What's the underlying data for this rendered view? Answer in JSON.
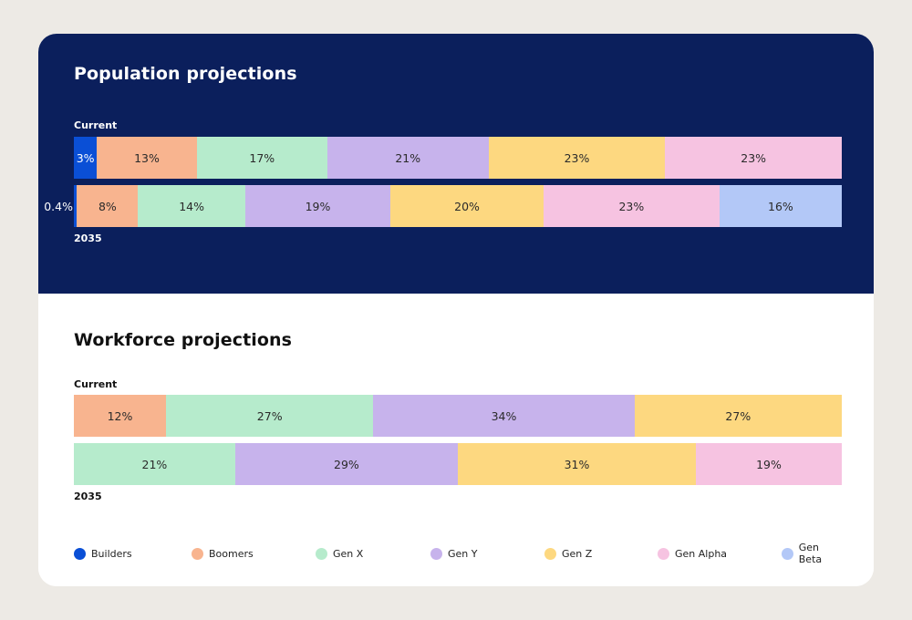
{
  "chart_data": [
    {
      "type": "bar",
      "orientation": "horizontal-stacked-percent",
      "title": "Population projections",
      "categories": [
        "Current",
        "2035"
      ],
      "series": [
        {
          "name": "Builders",
          "values": [
            3,
            0.4
          ]
        },
        {
          "name": "Boomers",
          "values": [
            13,
            8
          ]
        },
        {
          "name": "Gen X",
          "values": [
            17,
            14
          ]
        },
        {
          "name": "Gen Y",
          "values": [
            21,
            19
          ]
        },
        {
          "name": "Gen Z",
          "values": [
            23,
            20
          ]
        },
        {
          "name": "Gen Alpha",
          "values": [
            23,
            23
          ]
        },
        {
          "name": "Gen Beta",
          "values": [
            0,
            16
          ]
        }
      ],
      "labels": [
        [
          "3%",
          "13%",
          "17%",
          "21%",
          "23%",
          "23%",
          ""
        ],
        [
          "0.4%",
          "8%",
          "14%",
          "19%",
          "20%",
          "23%",
          "16%"
        ]
      ]
    },
    {
      "type": "bar",
      "orientation": "horizontal-stacked-percent",
      "title": "Workforce projections",
      "categories": [
        "Current",
        "2035"
      ],
      "series": [
        {
          "name": "Builders",
          "values": [
            0,
            0
          ]
        },
        {
          "name": "Boomers",
          "values": [
            12,
            0
          ]
        },
        {
          "name": "Gen X",
          "values": [
            27,
            21
          ]
        },
        {
          "name": "Gen Y",
          "values": [
            34,
            29
          ]
        },
        {
          "name": "Gen Z",
          "values": [
            27,
            31
          ]
        },
        {
          "name": "Gen Alpha",
          "values": [
            0,
            19
          ]
        },
        {
          "name": "Gen Beta",
          "values": [
            0,
            0
          ]
        }
      ],
      "labels": [
        [
          "",
          "12%",
          "27%",
          "34%",
          "27%",
          "",
          ""
        ],
        [
          "",
          "",
          "21%",
          "29%",
          "31%",
          "19%",
          ""
        ]
      ]
    }
  ],
  "legend": [
    {
      "name": "Builders",
      "color": "#0a4fd6"
    },
    {
      "name": "Boomers",
      "color": "#f8b48f"
    },
    {
      "name": "Gen X",
      "color": "#b6ebcc"
    },
    {
      "name": "Gen Y",
      "color": "#c7b3ec"
    },
    {
      "name": "Gen Z",
      "color": "#fdd880"
    },
    {
      "name": "Gen Alpha",
      "color": "#f6c3e1"
    },
    {
      "name": "Gen Beta",
      "color": "#b3c8f7"
    }
  ],
  "colors": {
    "page_bg": "#edeae5",
    "population_bg": "#0b1f5c",
    "workforce_bg": "#ffffff"
  }
}
